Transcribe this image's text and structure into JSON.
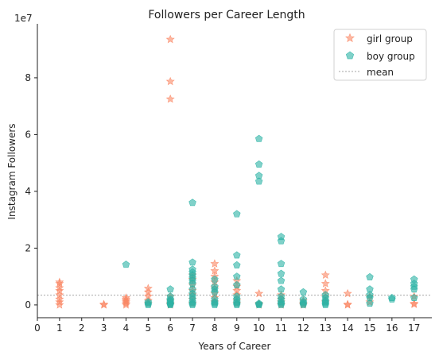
{
  "chart_data": {
    "type": "scatter",
    "title": "Followers per Career Length",
    "xlabel": "Years of Career",
    "ylabel": "Instagram Followers",
    "y_offset_text": "1e7",
    "xlim": [
      0,
      17.8
    ],
    "ylim": [
      -0.45,
      9.9
    ],
    "x_ticks": [
      "0",
      "1",
      "2",
      "3",
      "4",
      "5",
      "6",
      "7",
      "8",
      "9",
      "10",
      "11",
      "12",
      "13",
      "14",
      "15",
      "16",
      "17"
    ],
    "y_ticks": [
      "0",
      "2",
      "4",
      "6",
      "8"
    ],
    "legend_position": "top-right",
    "colors": {
      "girl": "#fa8764",
      "boy": "#2bb3a5",
      "mean": "#888888",
      "axis": "#222222"
    },
    "mean_value": 0.34,
    "series": [
      {
        "name": "girl group",
        "marker": "star",
        "points": [
          [
            1,
            0.0
          ],
          [
            1,
            0.1
          ],
          [
            1,
            0.2
          ],
          [
            1,
            0.35
          ],
          [
            1,
            0.5
          ],
          [
            1,
            0.6
          ],
          [
            1,
            0.75
          ],
          [
            1,
            0.8
          ],
          [
            3,
            0.0
          ],
          [
            3,
            0.02
          ],
          [
            4,
            0.0
          ],
          [
            4,
            0.05
          ],
          [
            4,
            0.1
          ],
          [
            4,
            0.15
          ],
          [
            4,
            0.2
          ],
          [
            4,
            0.25
          ],
          [
            5,
            0.05
          ],
          [
            5,
            0.15
          ],
          [
            5,
            0.3
          ],
          [
            5,
            0.45
          ],
          [
            5,
            0.58
          ],
          [
            6,
            0.0
          ],
          [
            6,
            0.05
          ],
          [
            6,
            0.15
          ],
          [
            6,
            0.3
          ],
          [
            6,
            7.25
          ],
          [
            6,
            7.87
          ],
          [
            6,
            9.35
          ],
          [
            7,
            0.05
          ],
          [
            7,
            0.2
          ],
          [
            7,
            0.35
          ],
          [
            7,
            0.5
          ],
          [
            7,
            0.7
          ],
          [
            7,
            0.9
          ],
          [
            7,
            1.05
          ],
          [
            8,
            0.1
          ],
          [
            8,
            0.25
          ],
          [
            8,
            0.4
          ],
          [
            8,
            0.6
          ],
          [
            8,
            0.8
          ],
          [
            8,
            1.0
          ],
          [
            8,
            1.2
          ],
          [
            8,
            1.45
          ],
          [
            9,
            0.05
          ],
          [
            9,
            0.15
          ],
          [
            9,
            0.35
          ],
          [
            9,
            0.5
          ],
          [
            9,
            0.65
          ],
          [
            9,
            0.85
          ],
          [
            10,
            0.0
          ],
          [
            10,
            0.05
          ],
          [
            10,
            0.4
          ],
          [
            11,
            0.0
          ],
          [
            11,
            0.1
          ],
          [
            11,
            0.2
          ],
          [
            11,
            0.35
          ],
          [
            12,
            0.0
          ],
          [
            12,
            0.05
          ],
          [
            12,
            0.15
          ],
          [
            13,
            0.1
          ],
          [
            13,
            0.3
          ],
          [
            13,
            0.5
          ],
          [
            13,
            0.75
          ],
          [
            13,
            1.05
          ],
          [
            14,
            0.0
          ],
          [
            14,
            0.02
          ],
          [
            14,
            0.4
          ],
          [
            15,
            0.1
          ],
          [
            15,
            0.3
          ],
          [
            17,
            0.02
          ],
          [
            17,
            0.05
          ],
          [
            17,
            0.3
          ]
        ]
      },
      {
        "name": "boy group",
        "marker": "pentagon",
        "points": [
          [
            4,
            1.42
          ],
          [
            5,
            0.0
          ],
          [
            5,
            0.05
          ],
          [
            5,
            0.1
          ],
          [
            6,
            0.0
          ],
          [
            6,
            0.02
          ],
          [
            6,
            0.05
          ],
          [
            6,
            0.1
          ],
          [
            6,
            0.15
          ],
          [
            6,
            0.2
          ],
          [
            6,
            0.3
          ],
          [
            6,
            0.55
          ],
          [
            7,
            0.0
          ],
          [
            7,
            0.05
          ],
          [
            7,
            0.1
          ],
          [
            7,
            0.2
          ],
          [
            7,
            0.3
          ],
          [
            7,
            0.4
          ],
          [
            7,
            0.55
          ],
          [
            7,
            0.75
          ],
          [
            7,
            0.85
          ],
          [
            7,
            0.95
          ],
          [
            7,
            1.05
          ],
          [
            7,
            1.15
          ],
          [
            7,
            1.25
          ],
          [
            7,
            1.5
          ],
          [
            7,
            3.6
          ],
          [
            8,
            0.0
          ],
          [
            8,
            0.05
          ],
          [
            8,
            0.1
          ],
          [
            8,
            0.2
          ],
          [
            8,
            0.45
          ],
          [
            8,
            0.55
          ],
          [
            8,
            0.65
          ],
          [
            8,
            0.9
          ],
          [
            9,
            0.0
          ],
          [
            9,
            0.05
          ],
          [
            9,
            0.1
          ],
          [
            9,
            0.2
          ],
          [
            9,
            0.3
          ],
          [
            9,
            0.7
          ],
          [
            9,
            1.0
          ],
          [
            9,
            1.4
          ],
          [
            9,
            1.75
          ],
          [
            9,
            3.2
          ],
          [
            10,
            0.0
          ],
          [
            10,
            0.02
          ],
          [
            10,
            0.05
          ],
          [
            10,
            4.35
          ],
          [
            10,
            4.55
          ],
          [
            10,
            4.95
          ],
          [
            10,
            5.85
          ],
          [
            11,
            0.0
          ],
          [
            11,
            0.05
          ],
          [
            11,
            0.1
          ],
          [
            11,
            0.2
          ],
          [
            11,
            0.3
          ],
          [
            11,
            0.55
          ],
          [
            11,
            0.85
          ],
          [
            11,
            1.1
          ],
          [
            11,
            1.45
          ],
          [
            11,
            2.25
          ],
          [
            11,
            2.4
          ],
          [
            12,
            0.0
          ],
          [
            12,
            0.05
          ],
          [
            12,
            0.1
          ],
          [
            12,
            0.2
          ],
          [
            12,
            0.45
          ],
          [
            13,
            0.0
          ],
          [
            13,
            0.05
          ],
          [
            13,
            0.1
          ],
          [
            13,
            0.15
          ],
          [
            13,
            0.25
          ],
          [
            13,
            0.35
          ],
          [
            15,
            0.05
          ],
          [
            15,
            0.25
          ],
          [
            15,
            0.35
          ],
          [
            15,
            0.55
          ],
          [
            15,
            0.98
          ],
          [
            16,
            0.2
          ],
          [
            16,
            0.25
          ],
          [
            17,
            0.25
          ],
          [
            17,
            0.55
          ],
          [
            17,
            0.65
          ],
          [
            17,
            0.75
          ],
          [
            17,
            0.9
          ]
        ]
      }
    ],
    "legend": [
      {
        "label": "girl group",
        "marker": "star"
      },
      {
        "label": "boy group",
        "marker": "pentagon"
      },
      {
        "label": "mean",
        "marker": "dashed-line"
      }
    ]
  }
}
